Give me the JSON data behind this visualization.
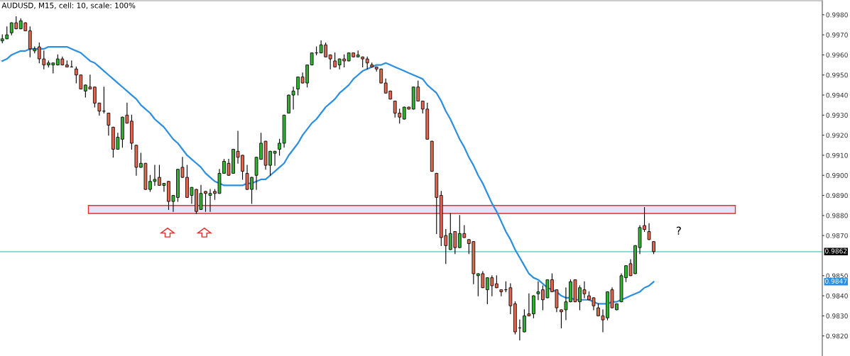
{
  "chart_data": {
    "type": "candlestick",
    "title": "AUDUSD, M15, cell: 10, scale: 100%",
    "categories": [
      null,
      null,
      null,
      null,
      null,
      null,
      null,
      null,
      null,
      null,
      null,
      null,
      null,
      null,
      null,
      null,
      null,
      null,
      null,
      null,
      null,
      null,
      null,
      null,
      null,
      null,
      null,
      null,
      null,
      null,
      null,
      null,
      null,
      null,
      null,
      null,
      null,
      null,
      null,
      null,
      null,
      null,
      null,
      null,
      null,
      null,
      null,
      null,
      null,
      null,
      null,
      null,
      null,
      null,
      null,
      null,
      null,
      null,
      null,
      null,
      null,
      null,
      null,
      null,
      null,
      null,
      null,
      null,
      null,
      null,
      null,
      null,
      null,
      null,
      null,
      null,
      null,
      null,
      null,
      null,
      null,
      null,
      null,
      null,
      null,
      null,
      null,
      null,
      null,
      null,
      null,
      null,
      null,
      null,
      null,
      null,
      null,
      null,
      null,
      null,
      null,
      null,
      null,
      null,
      null,
      null,
      null,
      null,
      null,
      null,
      null,
      null,
      null,
      null,
      null,
      null,
      null,
      null,
      null,
      null,
      null,
      null,
      null,
      null,
      null,
      null,
      null,
      null,
      null,
      null,
      null,
      null,
      null,
      null,
      null,
      null,
      null,
      null,
      null,
      null,
      null,
      null,
      null,
      null,
      null,
      null,
      null,
      null,
      null,
      null,
      null,
      null,
      null,
      null,
      null,
      null,
      null,
      null,
      null,
      null,
      null,
      null,
      null,
      null,
      null,
      null,
      null,
      null,
      null,
      null,
      null,
      null,
      null,
      null,
      null,
      null,
      null,
      null
    ],
    "ohlc": [
      [
        0.9967,
        0.997,
        0.9966,
        0.9968
      ],
      [
        0.9968,
        0.9974,
        0.9968,
        0.997
      ],
      [
        0.9971,
        0.9976,
        0.997,
        0.9976
      ],
      [
        0.9976,
        0.9979,
        0.9973,
        0.9973
      ],
      [
        0.9973,
        0.9978,
        0.9973,
        0.9977
      ],
      [
        0.9976,
        0.9976,
        0.9972,
        0.9972
      ],
      [
        0.9972,
        0.9974,
        0.9959,
        0.9963
      ],
      [
        0.9962,
        0.9964,
        0.9961,
        0.9963
      ],
      [
        0.9964,
        0.9966,
        0.9956,
        0.9958
      ],
      [
        0.9958,
        0.9962,
        0.9953,
        0.9955
      ],
      [
        0.9955,
        0.9957,
        0.9954,
        0.9956
      ],
      [
        0.9955,
        0.9956,
        0.9951,
        0.9956
      ],
      [
        0.9955,
        0.996,
        0.9955,
        0.9958
      ],
      [
        0.9958,
        0.9959,
        0.9955,
        0.9955
      ],
      [
        0.9955,
        0.9957,
        0.9954,
        0.9954
      ],
      [
        0.9954,
        0.9957,
        0.9954,
        0.9954
      ],
      [
        0.9953,
        0.9954,
        0.9946,
        0.995
      ],
      [
        0.995,
        0.995,
        0.9943,
        0.9943
      ],
      [
        0.9942,
        0.9945,
        0.9939,
        0.9945
      ],
      [
        0.9944,
        0.995,
        0.9943,
        0.9943
      ],
      [
        0.9944,
        0.9944,
        0.9934,
        0.9936
      ],
      [
        0.9936,
        0.9936,
        0.993,
        0.9932
      ],
      [
        0.9932,
        0.9944,
        0.9931,
        0.9932
      ],
      [
        0.9931,
        0.9931,
        0.992,
        0.9925
      ],
      [
        0.9924,
        0.9924,
        0.9909,
        0.9913
      ],
      [
        0.9913,
        0.9921,
        0.9913,
        0.9919
      ],
      [
        0.9918,
        0.9929,
        0.9914,
        0.9929
      ],
      [
        0.993,
        0.9936,
        0.9926,
        0.9926
      ],
      [
        0.9927,
        0.993,
        0.9913,
        0.9916
      ],
      [
        0.9915,
        0.9915,
        0.99,
        0.9904
      ],
      [
        0.9904,
        0.9911,
        0.9904,
        0.9906
      ],
      [
        0.9906,
        0.9906,
        0.9893,
        0.9893
      ],
      [
        0.9893,
        0.99,
        0.9892,
        0.9897
      ],
      [
        0.9897,
        0.9905,
        0.9895,
        0.9898
      ],
      [
        0.9899,
        0.9905,
        0.9895,
        0.9895
      ],
      [
        0.9895,
        0.9896,
        0.9892,
        0.9896
      ],
      [
        0.9897,
        0.9897,
        0.9883,
        0.9887
      ],
      [
        0.9887,
        0.989,
        0.9882,
        0.989
      ],
      [
        0.9889,
        0.9903,
        0.9887,
        0.9903
      ],
      [
        0.9904,
        0.9909,
        0.9899,
        0.9899
      ],
      [
        0.9899,
        0.9905,
        0.9889,
        0.9889
      ],
      [
        0.989,
        0.9894,
        0.9886,
        0.9894
      ],
      [
        0.9893,
        0.9893,
        0.9881,
        0.9882
      ],
      [
        0.9883,
        0.9895,
        0.9883,
        0.9891
      ],
      [
        0.9892,
        0.9892,
        0.9882,
        0.9891
      ],
      [
        0.989,
        0.9893,
        0.9882,
        0.9891
      ],
      [
        0.9892,
        0.9893,
        0.9888,
        0.9891
      ],
      [
        0.9891,
        0.9903,
        0.9891,
        0.9901
      ],
      [
        0.9901,
        0.9908,
        0.9901,
        0.9907
      ],
      [
        0.9906,
        0.9908,
        0.99,
        0.99
      ],
      [
        0.9901,
        0.9913,
        0.9901,
        0.9913
      ],
      [
        0.9912,
        0.9922,
        0.9906,
        0.9909
      ],
      [
        0.991,
        0.991,
        0.9898,
        0.9902
      ],
      [
        0.9901,
        0.9905,
        0.9893,
        0.9893
      ],
      [
        0.9893,
        0.9899,
        0.9886,
        0.9899
      ],
      [
        0.99,
        0.9909,
        0.9893,
        0.9909
      ],
      [
        0.9908,
        0.9921,
        0.9908,
        0.9916
      ],
      [
        0.9917,
        0.9917,
        0.9903,
        0.9905
      ],
      [
        0.9905,
        0.9912,
        0.99,
        0.9912
      ],
      [
        0.9911,
        0.9912,
        0.9905,
        0.9912
      ],
      [
        0.9913,
        0.9918,
        0.991,
        0.9916
      ],
      [
        0.9916,
        0.993,
        0.9914,
        0.993
      ],
      [
        0.9931,
        0.994,
        0.9931,
        0.994
      ],
      [
        0.994,
        0.9944,
        0.9933,
        0.9942
      ],
      [
        0.9943,
        0.9949,
        0.994,
        0.9949
      ],
      [
        0.9949,
        0.9951,
        0.9946,
        0.9946
      ],
      [
        0.9946,
        0.9955,
        0.9944,
        0.9955
      ],
      [
        0.9955,
        0.9961,
        0.9955,
        0.9961
      ],
      [
        0.9961,
        0.9964,
        0.996,
        0.9961
      ],
      [
        0.9961,
        0.9967,
        0.9961,
        0.9965
      ],
      [
        0.9965,
        0.9966,
        0.9959,
        0.9959
      ],
      [
        0.996,
        0.996,
        0.9953,
        0.9958
      ],
      [
        0.9957,
        0.9961,
        0.9954,
        0.9954
      ],
      [
        0.9955,
        0.9958,
        0.9953,
        0.9958
      ],
      [
        0.9958,
        0.996,
        0.9954,
        0.9957
      ],
      [
        0.9957,
        0.9961,
        0.9957,
        0.9961
      ],
      [
        0.9961,
        0.9961,
        0.9959,
        0.9959
      ],
      [
        0.9959,
        0.9962,
        0.9959,
        0.996
      ],
      [
        0.9959,
        0.9959,
        0.9954,
        0.9958
      ],
      [
        0.9958,
        0.9959,
        0.9953,
        0.9956
      ],
      [
        0.9955,
        0.9956,
        0.9954,
        0.9954
      ],
      [
        0.9954,
        0.9954,
        0.9952,
        0.9953
      ],
      [
        0.9953,
        0.9953,
        0.9946,
        0.9946
      ],
      [
        0.9946,
        0.9948,
        0.9941,
        0.9941
      ],
      [
        0.9942,
        0.9942,
        0.9938,
        0.9938
      ],
      [
        0.9937,
        0.9937,
        0.9929,
        0.9931
      ],
      [
        0.9931,
        0.9933,
        0.9926,
        0.9929
      ],
      [
        0.9928,
        0.9934,
        0.9928,
        0.9934
      ],
      [
        0.9934,
        0.9934,
        0.9933,
        0.9933
      ],
      [
        0.9933,
        0.9944,
        0.9933,
        0.9944
      ],
      [
        0.9944,
        0.9947,
        0.9937,
        0.9937
      ],
      [
        0.9937,
        0.9937,
        0.9931,
        0.9933
      ],
      [
        0.9933,
        0.9936,
        0.9918,
        0.9918
      ],
      [
        0.9917,
        0.9917,
        0.9902,
        0.9902
      ],
      [
        0.9901,
        0.9901,
        0.9871,
        0.9889
      ],
      [
        0.989,
        0.9892,
        0.9865,
        0.9869
      ],
      [
        0.987,
        0.9873,
        0.9856,
        0.9865
      ],
      [
        0.9863,
        0.9881,
        0.9863,
        0.9871
      ],
      [
        0.9872,
        0.9872,
        0.9861,
        0.9864
      ],
      [
        0.9864,
        0.988,
        0.9864,
        0.9871
      ],
      [
        0.9871,
        0.9875,
        0.9869,
        0.9869
      ],
      [
        0.9868,
        0.9868,
        0.9861,
        0.9866
      ],
      [
        0.9867,
        0.9867,
        0.9846,
        0.9851
      ],
      [
        0.985,
        0.9851,
        0.984,
        0.9851
      ],
      [
        0.9851,
        0.9852,
        0.9844,
        0.9844
      ],
      [
        0.9843,
        0.9849,
        0.9836,
        0.9849
      ],
      [
        0.9849,
        0.985,
        0.984,
        0.9845
      ],
      [
        0.9846,
        0.985,
        0.9844,
        0.9844
      ],
      [
        0.9843,
        0.9843,
        0.984,
        0.9842
      ],
      [
        0.9843,
        0.9847,
        0.9842,
        0.9843
      ],
      [
        0.9844,
        0.9846,
        0.9831,
        0.9835
      ],
      [
        0.9836,
        0.9837,
        0.9821,
        0.9822
      ],
      [
        0.9824,
        0.9828,
        0.9818,
        0.9824
      ],
      [
        0.9822,
        0.9833,
        0.9822,
        0.983
      ],
      [
        0.9831,
        0.9841,
        0.983,
        0.983
      ],
      [
        0.9831,
        0.984,
        0.9829,
        0.984
      ],
      [
        0.9841,
        0.9847,
        0.9838,
        0.9842
      ],
      [
        0.9843,
        0.9845,
        0.9833,
        0.9838
      ],
      [
        0.9839,
        0.9848,
        0.9839,
        0.9848
      ],
      [
        0.9848,
        0.9851,
        0.9842,
        0.9842
      ],
      [
        0.9843,
        0.9843,
        0.9832,
        0.9834
      ],
      [
        0.9833,
        0.9833,
        0.9824,
        0.9832
      ],
      [
        0.9833,
        0.9844,
        0.9828,
        0.9837
      ],
      [
        0.9837,
        0.9848,
        0.9837,
        0.9847
      ],
      [
        0.9848,
        0.9848,
        0.9837,
        0.9837
      ],
      [
        0.9837,
        0.9845,
        0.9833,
        0.9844
      ],
      [
        0.9843,
        0.9847,
        0.9839,
        0.9841
      ],
      [
        0.984,
        0.9842,
        0.9838,
        0.9838
      ],
      [
        0.9839,
        0.9839,
        0.9833,
        0.9835
      ],
      [
        0.9834,
        0.9836,
        0.983,
        0.983
      ],
      [
        0.983,
        0.9833,
        0.9822,
        0.9828
      ],
      [
        0.9829,
        0.9842,
        0.9828,
        0.9842
      ],
      [
        0.9843,
        0.9844,
        0.9834,
        0.9834
      ],
      [
        0.9833,
        0.9836,
        0.9833,
        0.9836
      ],
      [
        0.9837,
        0.9851,
        0.9837,
        0.985
      ],
      [
        0.9849,
        0.9855,
        0.9847,
        0.9855
      ],
      [
        0.9856,
        0.9858,
        0.985,
        0.985
      ],
      [
        0.9851,
        0.9865,
        0.9851,
        0.9865
      ],
      [
        0.9864,
        0.9875,
        0.9861,
        0.9874
      ],
      [
        0.9875,
        0.9884,
        0.9872,
        0.9873
      ],
      [
        0.9872,
        0.9876,
        0.9868,
        0.9868
      ],
      [
        0.9867,
        0.9867,
        0.9861,
        0.9862
      ],
      null,
      null,
      null,
      null,
      null,
      null,
      null,
      null,
      null,
      null,
      null,
      null,
      null,
      null,
      null,
      null,
      null,
      null,
      null,
      null,
      null,
      null,
      null,
      null,
      null,
      null,
      null,
      null,
      null,
      null,
      null,
      null,
      null,
      null,
      null,
      null
    ],
    "series": [
      {
        "type": "line",
        "color": "#2c8fe0",
        "values": [
          0.9957,
          0.9958,
          0.996,
          0.9961,
          0.9962,
          0.9962,
          0.9963,
          0.9963,
          0.9963,
          0.9963,
          0.9964,
          0.9964,
          0.9964,
          0.9964,
          0.9964,
          0.9963,
          0.9962,
          0.9961,
          0.9959,
          0.9957,
          0.9956,
          0.9954,
          0.9952,
          0.995,
          0.9948,
          0.9946,
          0.9944,
          0.9942,
          0.994,
          0.9938,
          0.9935,
          0.9933,
          0.9931,
          0.9928,
          0.9926,
          0.9924,
          0.9921,
          0.9918,
          0.9916,
          0.9913,
          0.991,
          0.9908,
          0.9906,
          0.9904,
          0.9901,
          0.9899,
          0.9897,
          0.9896,
          0.9895,
          0.9895,
          0.9895,
          0.9895,
          0.9895,
          0.9896,
          0.9896,
          0.9897,
          0.9898,
          0.9898,
          0.99,
          0.9902,
          0.9904,
          0.9906,
          0.991,
          0.9913,
          0.9916,
          0.992,
          0.9923,
          0.9926,
          0.9928,
          0.9931,
          0.9934,
          0.9936,
          0.9938,
          0.9941,
          0.9943,
          0.9945,
          0.9948,
          0.995,
          0.9952,
          0.9953,
          0.9954,
          0.9955,
          0.9955,
          0.9956,
          0.9955,
          0.9954,
          0.9953,
          0.9952,
          0.9951,
          0.995,
          0.9949,
          0.9948,
          0.9945,
          0.9943,
          0.9941,
          0.9937,
          0.9932,
          0.9928,
          0.9923,
          0.9918,
          0.9914,
          0.9909,
          0.9905,
          0.99,
          0.9896,
          0.9891,
          0.9886,
          0.9882,
          0.9877,
          0.9872,
          0.9868,
          0.9863,
          0.9859,
          0.9855,
          0.9851,
          0.9849,
          0.9848,
          0.9846,
          0.9844,
          0.9843,
          0.9842,
          0.984,
          0.9839,
          0.9839,
          0.9838,
          0.9838,
          0.9838,
          0.9838,
          0.9837,
          0.9836,
          0.9836,
          0.9836,
          0.9837,
          0.9837,
          0.9838,
          0.9839,
          0.984,
          0.9841,
          0.9842,
          0.9844,
          0.9845,
          0.9847,
          null,
          null,
          null,
          null,
          null,
          null,
          null,
          null,
          null,
          null,
          null,
          null,
          null,
          null,
          null,
          null,
          null,
          null,
          null,
          null,
          null,
          null,
          null,
          null,
          null,
          null,
          null,
          null,
          null,
          null,
          null,
          null,
          null,
          null,
          null,
          null
        ],
        "value_labels": [
          null,
          null,
          null,
          null,
          null,
          null,
          null,
          null,
          null,
          null,
          null,
          null,
          null,
          null,
          null,
          null,
          null,
          null,
          null,
          null,
          null,
          null,
          null,
          null,
          null,
          null,
          null,
          null,
          null,
          null,
          null,
          null,
          null,
          null,
          null,
          null,
          null,
          null,
          null,
          null,
          null,
          null,
          null,
          null,
          null,
          null,
          null,
          null,
          null,
          null,
          null,
          null,
          null,
          null,
          null,
          null,
          null,
          null,
          null,
          null,
          null,
          null,
          null,
          null,
          null,
          null,
          null,
          null,
          null,
          null,
          null,
          null,
          null,
          null,
          null,
          null,
          null,
          null,
          null,
          null,
          null,
          null,
          null,
          null,
          null,
          null,
          null,
          null,
          null,
          null,
          null,
          null,
          null,
          null,
          null,
          null,
          null,
          null,
          null,
          null,
          null,
          null,
          null,
          null,
          null,
          null,
          null,
          null,
          null,
          null,
          null,
          null,
          null,
          null,
          null,
          null,
          null,
          null,
          null,
          null,
          null,
          null,
          null,
          null,
          null,
          null,
          null,
          null,
          null,
          null,
          null,
          null,
          null,
          null,
          null,
          null,
          null,
          null,
          null,
          null,
          null,
          null,
          null,
          null,
          null,
          null,
          null,
          null,
          null,
          null,
          null,
          null,
          null,
          null,
          null,
          null,
          null,
          null,
          null,
          null,
          null,
          null,
          null,
          null,
          null,
          null,
          null,
          null,
          null,
          null,
          null,
          null,
          null,
          null,
          null,
          null,
          null,
          null
        ]
      }
    ],
    "ylim": [
      0.981,
      0.9987
    ],
    "yticks": [
      {
        "value": 0.982,
        "label": "0.9820"
      },
      {
        "value": 0.983,
        "label": "0.9830"
      },
      {
        "value": 0.984,
        "label": "0.9840"
      },
      {
        "value": 0.985,
        "label": "0.9850"
      },
      {
        "value": 0.987,
        "label": "0.9870"
      },
      {
        "value": 0.988,
        "label": "0.9880"
      },
      {
        "value": 0.989,
        "label": "0.9890"
      },
      {
        "value": 0.99,
        "label": "0.9900"
      },
      {
        "value": 0.991,
        "label": "0.9910"
      },
      {
        "value": 0.992,
        "label": "0.9920"
      },
      {
        "value": 0.993,
        "label": "0.9930"
      },
      {
        "value": 0.994,
        "label": "0.9940"
      },
      {
        "value": 0.995,
        "label": "0.9950"
      },
      {
        "value": 0.996,
        "label": "0.9960"
      },
      {
        "value": 0.997,
        "label": "0.9970"
      },
      {
        "value": 0.998,
        "label": "0.9980"
      }
    ],
    "ref_lines": [
      {
        "axis": "y",
        "value": 0.9862,
        "label": "0.9862",
        "color": "#7fd6d6"
      }
    ],
    "bands": [
      {
        "axis": "y",
        "from": 0.9881,
        "to": 0.9885,
        "color": "#e4e4f8"
      }
    ],
    "annotations": [
      "?",
      "0.9847"
    ],
    "tick_labels": "y",
    "grid": false
  }
}
